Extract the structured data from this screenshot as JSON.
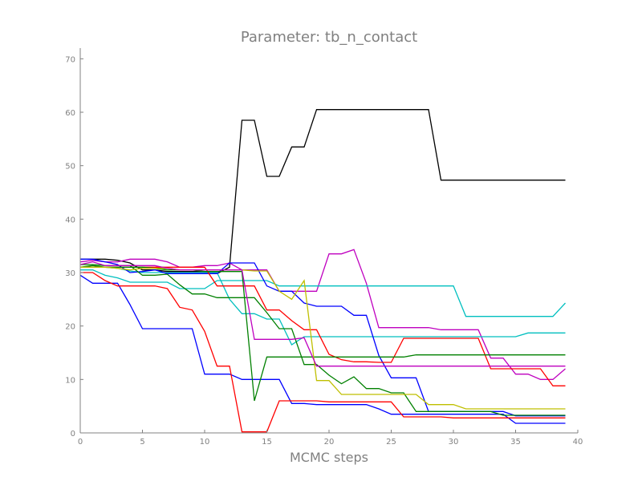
{
  "chart_data": {
    "type": "line",
    "title": "Parameter: tb_n_contact",
    "xlabel": "MCMC steps",
    "ylabel": "",
    "xlim": [
      0,
      40
    ],
    "ylim": [
      0,
      72
    ],
    "xticks": [
      0,
      5,
      10,
      15,
      20,
      25,
      30,
      35,
      40
    ],
    "yticks": [
      0,
      10,
      20,
      30,
      40,
      50,
      60,
      70
    ],
    "grid": false,
    "series": [
      {
        "color": "#000000",
        "values": [
          32.5,
          32.5,
          32.5,
          32.3,
          31.8,
          30.5,
          30.5,
          30.2,
          30.2,
          30.2,
          30.2,
          29.8,
          31.0,
          58.5,
          58.5,
          48.0,
          48.0,
          53.5,
          53.5,
          60.5,
          60.5,
          60.5,
          60.5,
          60.5,
          60.5,
          60.5,
          60.5,
          60.5,
          60.5,
          47.3,
          47.3,
          47.3,
          47.3,
          47.3,
          47.3,
          47.3,
          47.3,
          47.3,
          47.3,
          47.3
        ]
      },
      {
        "color": "#bf00bf",
        "values": [
          32.0,
          32.3,
          32.0,
          32.0,
          32.5,
          32.5,
          32.5,
          32.0,
          31.0,
          31.0,
          31.3,
          31.3,
          31.8,
          30.5,
          30.5,
          30.5,
          26.5,
          26.5,
          26.5,
          26.5,
          33.5,
          33.5,
          34.3,
          28.0,
          19.7,
          19.7,
          19.7,
          19.7,
          19.7,
          19.3,
          19.3,
          19.3,
          19.3,
          14.0,
          14.0,
          11.0,
          11.0,
          10.0,
          10.0,
          12.0
        ]
      },
      {
        "color": "#00bfbf",
        "values": [
          30.5,
          30.5,
          29.5,
          29.0,
          28.2,
          28.2,
          28.2,
          28.2,
          27.0,
          27.0,
          27.0,
          28.5,
          28.5,
          28.5,
          28.5,
          28.5,
          27.5,
          27.5,
          27.5,
          27.5,
          27.5,
          27.5,
          27.5,
          27.5,
          27.5,
          27.5,
          27.5,
          27.5,
          27.5,
          27.5,
          27.5,
          21.8,
          21.8,
          21.8,
          21.8,
          21.8,
          21.8,
          21.8,
          21.8,
          24.3
        ]
      },
      {
        "color": "#00bfbf",
        "values": [
          31.0,
          31.0,
          31.0,
          30.8,
          30.3,
          30.0,
          30.0,
          30.0,
          30.0,
          30.0,
          30.0,
          30.0,
          25.0,
          22.3,
          22.3,
          21.3,
          21.3,
          16.5,
          18.0,
          18.0,
          18.0,
          18.0,
          18.0,
          18.0,
          18.0,
          18.0,
          18.0,
          18.0,
          18.0,
          18.0,
          18.0,
          18.0,
          18.0,
          18.0,
          18.0,
          18.0,
          18.7,
          18.7,
          18.7,
          18.7
        ]
      },
      {
        "color": "#0000ff",
        "values": [
          29.5,
          28.0,
          28.0,
          28.0,
          24.0,
          19.5,
          19.5,
          19.5,
          19.5,
          19.5,
          11.0,
          11.0,
          11.0,
          10.0,
          10.0,
          10.0,
          10.0,
          5.5,
          5.5,
          5.3,
          5.3,
          5.3,
          5.3,
          5.3,
          4.5,
          3.5,
          3.5,
          3.5,
          3.5,
          3.5,
          3.5,
          3.5,
          3.5,
          3.5,
          3.5,
          1.8,
          1.8,
          1.8,
          1.8,
          1.8
        ]
      },
      {
        "color": "#0000ff",
        "values": [
          32.5,
          32.5,
          32.0,
          31.5,
          30.0,
          30.2,
          30.5,
          29.8,
          29.8,
          29.8,
          29.8,
          29.8,
          31.8,
          31.8,
          31.8,
          27.5,
          26.5,
          26.5,
          24.3,
          23.7,
          23.7,
          23.7,
          22.0,
          22.0,
          14.5,
          10.3,
          10.3,
          10.3,
          4.0,
          4.0,
          4.0,
          4.0,
          4.0,
          4.0,
          4.0,
          3.2,
          3.2,
          3.2,
          3.2,
          3.2
        ]
      },
      {
        "color": "#ff0000",
        "values": [
          30.0,
          30.0,
          28.5,
          27.5,
          27.5,
          27.5,
          27.5,
          27.0,
          23.5,
          23.0,
          19.0,
          12.5,
          12.5,
          0.2,
          0.2,
          0.2,
          6.0,
          6.0,
          6.0,
          6.0,
          5.8,
          5.8,
          5.8,
          5.8,
          5.8,
          5.8,
          3.0,
          3.0,
          3.0,
          3.0,
          2.8,
          2.8,
          2.8,
          2.8,
          2.8,
          2.8,
          2.8,
          2.8,
          2.8,
          2.8
        ]
      },
      {
        "color": "#ff0000",
        "values": [
          31.0,
          31.0,
          31.0,
          31.0,
          31.0,
          31.0,
          31.0,
          31.0,
          31.0,
          31.0,
          31.0,
          27.5,
          27.5,
          27.5,
          27.5,
          23.0,
          23.0,
          21.0,
          19.3,
          19.3,
          14.7,
          13.7,
          13.3,
          13.3,
          13.2,
          13.2,
          17.7,
          17.7,
          17.7,
          17.7,
          17.7,
          17.7,
          17.7,
          12.0,
          12.0,
          12.0,
          12.0,
          12.0,
          8.8,
          8.8
        ]
      },
      {
        "color": "#008000",
        "values": [
          31.5,
          31.5,
          31.3,
          31.3,
          31.3,
          29.5,
          29.5,
          29.7,
          27.7,
          26.0,
          26.0,
          25.3,
          25.3,
          25.3,
          25.3,
          22.5,
          19.5,
          19.5,
          12.8,
          12.8,
          10.8,
          9.2,
          10.5,
          8.3,
          8.3,
          7.5,
          7.5,
          4.0,
          4.0,
          4.0,
          4.0,
          4.0,
          4.0,
          4.0,
          3.3,
          3.3,
          3.3,
          3.3,
          3.3,
          3.3
        ]
      },
      {
        "color": "#008000",
        "values": [
          31.0,
          31.3,
          31.0,
          31.0,
          31.0,
          31.0,
          30.8,
          30.5,
          30.5,
          30.5,
          30.2,
          30.2,
          30.2,
          30.2,
          6.0,
          14.2,
          14.2,
          14.2,
          14.2,
          14.2,
          14.2,
          14.2,
          14.2,
          14.2,
          14.2,
          14.2,
          14.2,
          14.6,
          14.6,
          14.6,
          14.6,
          14.6,
          14.6,
          14.6,
          14.6,
          14.6,
          14.6,
          14.6,
          14.6,
          14.6
        ]
      },
      {
        "color": "#bfbf00",
        "values": [
          31.0,
          31.0,
          31.0,
          30.8,
          30.5,
          30.8,
          30.8,
          30.8,
          30.5,
          30.5,
          30.5,
          30.5,
          30.5,
          30.5,
          30.3,
          30.3,
          26.5,
          25.0,
          28.5,
          9.8,
          9.8,
          7.2,
          7.2,
          7.2,
          7.2,
          7.2,
          7.2,
          7.2,
          5.3,
          5.3,
          5.3,
          4.5,
          4.5,
          4.5,
          4.5,
          4.5,
          4.5,
          4.5,
          4.5,
          4.5
        ]
      },
      {
        "color": "#bf00bf",
        "values": [
          31.5,
          32.0,
          31.3,
          31.3,
          31.3,
          31.3,
          31.3,
          30.8,
          30.5,
          30.5,
          30.5,
          30.5,
          30.5,
          30.5,
          17.5,
          17.5,
          17.5,
          17.5,
          17.8,
          12.5,
          12.5,
          12.5,
          12.5,
          12.5,
          12.5,
          12.5,
          12.5,
          12.5,
          12.5,
          12.5,
          12.5,
          12.5,
          12.5,
          12.5,
          12.5,
          12.5,
          12.5,
          12.5,
          12.5,
          12.5
        ]
      }
    ]
  }
}
